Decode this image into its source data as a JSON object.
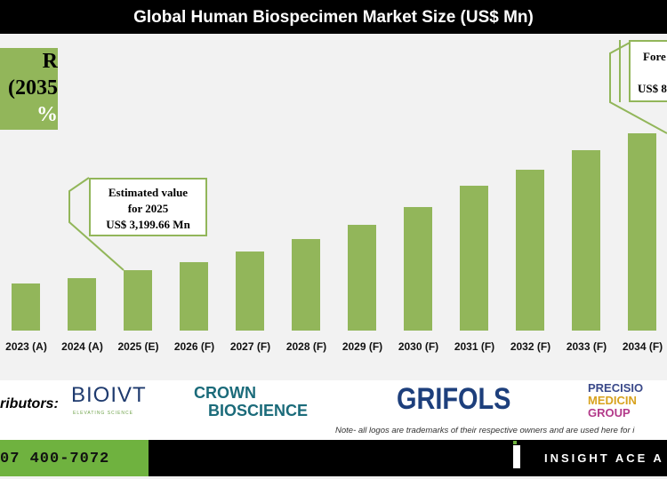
{
  "chart_data": {
    "type": "bar",
    "title": "Global Human Biospecimen Market Size (US$ Mn)",
    "categories": [
      "2023 (A)",
      "2024 (A)",
      "2025 (E)",
      "2026 (F)",
      "2027 (F)",
      "2028 (F)",
      "2029 (F)",
      "2030 (F)",
      "2031 (F)",
      "2032 (F)",
      "2033 (F)",
      "2034 (F)"
    ],
    "values": [
      2743,
      2926,
      3199.66,
      3475,
      3840,
      4268,
      4756,
      5366,
      6098,
      6647,
      7318,
      7897
    ],
    "ylim": [
      1126,
      9000
    ],
    "bar_color": "#92b65a",
    "annotations": {
      "cagr": [
        "R",
        "2035)",
        "%"
      ],
      "estimated": [
        "Estimated value",
        "for 2025",
        "US$ 3,199.66 Mn"
      ],
      "forecast": [
        "Fore",
        "f",
        "US$ 8"
      ]
    }
  },
  "logos": {
    "label": "ributors:",
    "items": [
      "BIOIVT",
      "ELEVATING SCIENCE",
      "CROWN",
      "BIOSCIENCE",
      "GRIFOLS",
      "PRECISIO",
      "MEDICIN",
      "GROUP"
    ]
  },
  "note": "Note- all logos are trademarks of their respective owners and are used here for i",
  "footer": {
    "phone": "07 400-7072",
    "brand": "INSIGHT ACE A"
  }
}
